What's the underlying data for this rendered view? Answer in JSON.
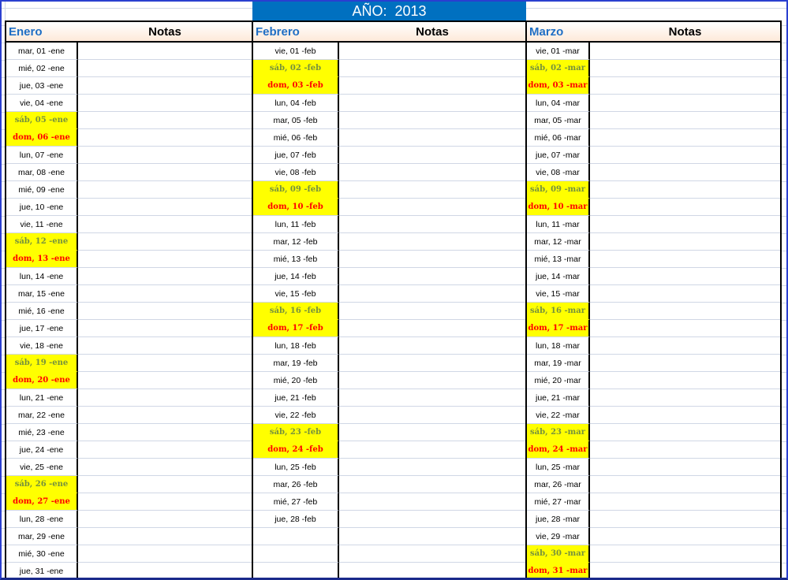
{
  "title": "AÑO:  2013",
  "notes_header": "Notas",
  "colors": {
    "title_bg": "#0070c0",
    "weekend_bg": "#ffff00",
    "saturday_text": "#76923c",
    "sunday_text": "#ff0000",
    "month_name": "#1f6fc5"
  },
  "months": [
    {
      "name": "Enero",
      "days": [
        "mar, 01 -ene",
        "mié, 02 -ene",
        "jue, 03 -ene",
        "vie, 04 -ene",
        "sáb, 05 -ene",
        "dom, 06 -ene",
        "lun, 07 -ene",
        "mar, 08 -ene",
        "mié, 09 -ene",
        "jue, 10 -ene",
        "vie, 11 -ene",
        "sáb, 12 -ene",
        "dom, 13 -ene",
        "lun, 14 -ene",
        "mar, 15 -ene",
        "mié, 16 -ene",
        "jue, 17 -ene",
        "vie, 18 -ene",
        "sáb, 19 -ene",
        "dom, 20 -ene",
        "lun, 21 -ene",
        "mar, 22 -ene",
        "mié, 23 -ene",
        "jue, 24 -ene",
        "vie, 25 -ene",
        "sáb, 26 -ene",
        "dom, 27 -ene",
        "lun, 28 -ene",
        "mar, 29 -ene",
        "mié, 30 -ene",
        "jue, 31 -ene"
      ]
    },
    {
      "name": "Febrero",
      "days": [
        "vie, 01 -feb",
        "sáb, 02 -feb",
        "dom, 03 -feb",
        "lun, 04 -feb",
        "mar, 05 -feb",
        "mié, 06 -feb",
        "jue, 07 -feb",
        "vie, 08 -feb",
        "sáb, 09 -feb",
        "dom, 10 -feb",
        "lun, 11 -feb",
        "mar, 12 -feb",
        "mié, 13 -feb",
        "jue, 14 -feb",
        "vie, 15 -feb",
        "sáb, 16 -feb",
        "dom, 17 -feb",
        "lun, 18 -feb",
        "mar, 19 -feb",
        "mié, 20 -feb",
        "jue, 21 -feb",
        "vie, 22 -feb",
        "sáb, 23 -feb",
        "dom, 24 -feb",
        "lun, 25 -feb",
        "mar, 26 -feb",
        "mié, 27 -feb",
        "jue, 28 -feb",
        "",
        "",
        ""
      ]
    },
    {
      "name": "Marzo",
      "days": [
        "vie, 01 -mar",
        "sáb, 02 -mar",
        "dom, 03 -mar",
        "lun, 04 -mar",
        "mar, 05 -mar",
        "mié, 06 -mar",
        "jue, 07 -mar",
        "vie, 08 -mar",
        "sáb, 09 -mar",
        "dom, 10 -mar",
        "lun, 11 -mar",
        "mar, 12 -mar",
        "mié, 13 -mar",
        "jue, 14 -mar",
        "vie, 15 -mar",
        "sáb, 16 -mar",
        "dom, 17 -mar",
        "lun, 18 -mar",
        "mar, 19 -mar",
        "mié, 20 -mar",
        "jue, 21 -mar",
        "vie, 22 -mar",
        "sáb, 23 -mar",
        "dom, 24 -mar",
        "lun, 25 -mar",
        "mar, 26 -mar",
        "mié, 27 -mar",
        "jue, 28 -mar",
        "vie, 29 -mar",
        "sáb, 30 -mar",
        "dom, 31 -mar"
      ]
    }
  ]
}
